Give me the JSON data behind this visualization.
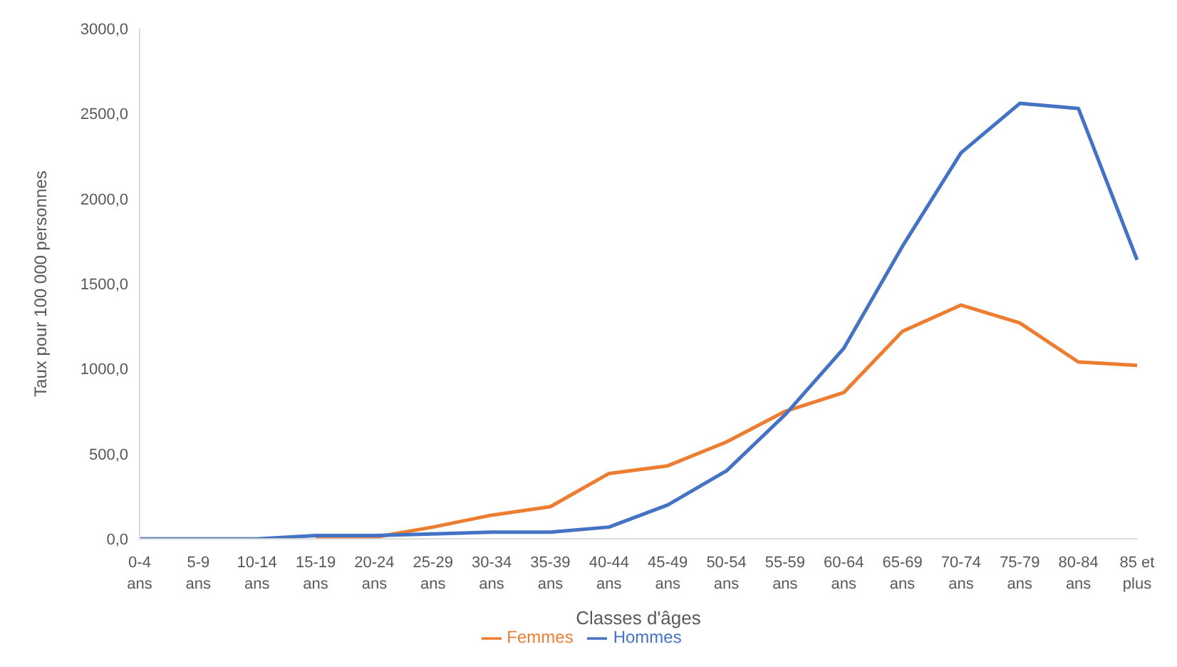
{
  "chart_data": {
    "type": "line",
    "xlabel": "Classes d'âges",
    "ylabel": "Taux  pour 100 000 personnes",
    "categories": [
      "0-4 ans",
      "5-9 ans",
      "10-14 ans",
      "15-19 ans",
      "20-24 ans",
      "25-29 ans",
      "30-34 ans",
      "35-39 ans",
      "40-44 ans",
      "45-49 ans",
      "50-54 ans",
      "55-59 ans",
      "60-64 ans",
      "65-69 ans",
      "70-74 ans",
      "75-79 ans",
      "80-84 ans",
      "85 et plus"
    ],
    "series": [
      {
        "name": "Femmes",
        "color": "#ed7d31",
        "values": [
          null,
          null,
          null,
          0,
          10,
          70,
          140,
          190,
          385,
          430,
          570,
          750,
          860,
          1220,
          1375,
          1270,
          1040,
          1020
        ]
      },
      {
        "name": "Hommes",
        "color": "#4472c4",
        "values": [
          0,
          0,
          0,
          20,
          20,
          30,
          40,
          40,
          70,
          200,
          400,
          730,
          1120,
          1720,
          2270,
          2560,
          2530,
          1640
        ]
      }
    ],
    "ylim": [
      0,
      3000
    ],
    "yticks": [
      {
        "value": 0,
        "label": "0,0"
      },
      {
        "value": 500,
        "label": "500,0"
      },
      {
        "value": 1000,
        "label": "1000,0"
      },
      {
        "value": 1500,
        "label": "1500,0"
      },
      {
        "value": 2000,
        "label": "2000,0"
      },
      {
        "value": 2500,
        "label": "2500,0"
      },
      {
        "value": 3000,
        "label": "3000,0"
      }
    ],
    "grid": false,
    "legend": "bottom",
    "marker": "none",
    "line_style": "solid"
  }
}
